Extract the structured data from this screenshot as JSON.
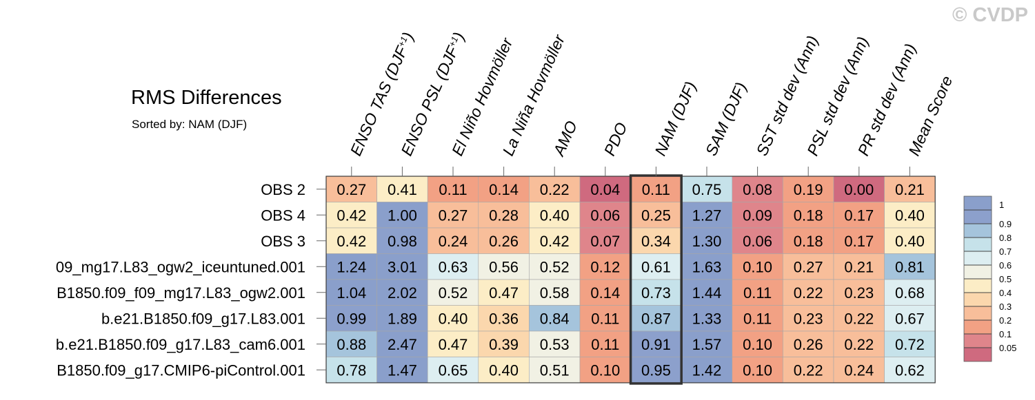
{
  "title": "RMS Differences",
  "subtitle": "Sorted by: NAM (DJF)",
  "watermark": "© CVDP",
  "chart_data": {
    "type": "heatmap",
    "title": "RMS Differences",
    "subtitle": "Sorted by: NAM (DJF)",
    "columns": [
      {
        "main": "ENSO TAS (DJF",
        "sup": "+1",
        "tail": ")"
      },
      {
        "main": "ENSO PSL (DJF",
        "sup": "+1",
        "tail": ")"
      },
      {
        "main": "El Niño Hovmöller"
      },
      {
        "main": "La Niña Hovmöller"
      },
      {
        "main": "AMO"
      },
      {
        "main": "PDO"
      },
      {
        "main": "NAM (DJF)"
      },
      {
        "main": "SAM (DJF)"
      },
      {
        "main": "SST std dev (Ann)"
      },
      {
        "main": "PSL std dev (Ann)"
      },
      {
        "main": "PR std dev (Ann)"
      },
      {
        "main": "Mean Score"
      }
    ],
    "rows": [
      "OBS 2",
      "OBS 4",
      "OBS 3",
      "09_mg17.L83_ogw2_iceuntuned.001",
      "B1850.f09_f09_mg17.L83_ogw2.001",
      "b.e21.B1850.f09_g17.L83.001",
      "b.e21.B1850.f09_g17.L83_cam6.001",
      "B1850.f09_g17.CMIP6-piControl.001"
    ],
    "values": [
      [
        "0.27",
        "0.41",
        "0.11",
        "0.14",
        "0.22",
        "0.04",
        "0.11",
        "0.75",
        "0.08",
        "0.19",
        "0.00",
        "0.21"
      ],
      [
        "0.42",
        "1.00",
        "0.27",
        "0.28",
        "0.40",
        "0.06",
        "0.25",
        "1.27",
        "0.09",
        "0.18",
        "0.17",
        "0.40"
      ],
      [
        "0.42",
        "0.98",
        "0.24",
        "0.26",
        "0.42",
        "0.07",
        "0.34",
        "1.30",
        "0.06",
        "0.18",
        "0.17",
        "0.40"
      ],
      [
        "1.24",
        "3.01",
        "0.63",
        "0.56",
        "0.52",
        "0.12",
        "0.61",
        "1.63",
        "0.10",
        "0.27",
        "0.21",
        "0.81"
      ],
      [
        "1.04",
        "2.02",
        "0.52",
        "0.47",
        "0.58",
        "0.14",
        "0.73",
        "1.44",
        "0.11",
        "0.22",
        "0.23",
        "0.68"
      ],
      [
        "0.99",
        "1.89",
        "0.40",
        "0.36",
        "0.84",
        "0.11",
        "0.87",
        "1.33",
        "0.11",
        "0.23",
        "0.22",
        "0.67"
      ],
      [
        "0.88",
        "2.47",
        "0.47",
        "0.39",
        "0.53",
        "0.11",
        "0.91",
        "1.57",
        "0.10",
        "0.26",
        "0.22",
        "0.72"
      ],
      [
        "0.78",
        "1.47",
        "0.65",
        "0.40",
        "0.51",
        "0.10",
        "0.95",
        "1.42",
        "0.10",
        "0.22",
        "0.24",
        "0.62"
      ]
    ],
    "highlighted_column": "NAM (DJF)",
    "colorbar": {
      "labels": [
        "1",
        "0.9",
        "0.8",
        "0.7",
        "0.6",
        "0.5",
        "0.4",
        "0.3",
        "0.2",
        "0.1",
        "0.05"
      ],
      "thresholds": [
        0.05,
        0.1,
        0.2,
        0.3,
        0.4,
        0.5,
        0.6,
        0.7,
        0.8,
        0.9,
        1.0
      ],
      "colors": [
        "#cf6a7f",
        "#df858b",
        "#f2a184",
        "#f8be9a",
        "#fbd7ad",
        "#fcedc6",
        "#f1f1e4",
        "#ddeef1",
        "#c6e2ea",
        "#a5c4dc",
        "#8ca0cc",
        "#8a9fcb"
      ]
    }
  }
}
